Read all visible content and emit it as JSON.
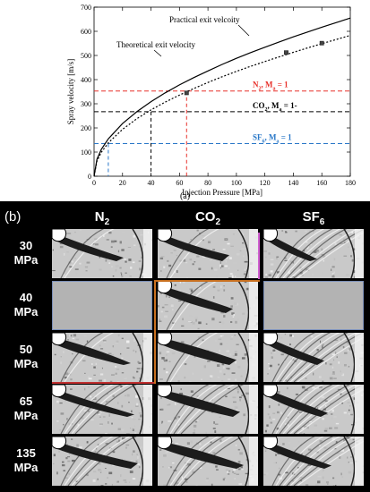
{
  "panel_a_caption": "(a)",
  "chart_data": {
    "type": "line",
    "xlabel": "Injection Pressure [MPa]",
    "ylabel": "Spray velocity [m/s]",
    "xlim": [
      0,
      180
    ],
    "ylim": [
      0,
      700
    ],
    "x_ticks": [
      "0",
      "20",
      "40",
      "60",
      "80",
      "100",
      "120",
      "140",
      "160",
      "180"
    ],
    "y_ticks": [
      "0",
      "100",
      "200",
      "300",
      "400",
      "500",
      "600",
      "700"
    ],
    "grid": false,
    "series": [
      {
        "name": "Theoretical exit velocity",
        "style": "solid",
        "color": "#000000",
        "x": [
          0,
          2,
          5,
          10,
          20,
          30,
          40,
          50,
          60,
          70,
          80,
          90,
          100,
          110,
          120,
          130,
          140,
          150,
          160,
          170,
          180
        ],
        "y": [
          0,
          70,
          110,
          155,
          218,
          267,
          309,
          345,
          378,
          408,
          436,
          463,
          488,
          512,
          534,
          556,
          577,
          597,
          617,
          636,
          655
        ]
      },
      {
        "name": "Practical exit velcoity",
        "style": "dotted",
        "color": "#000000",
        "x": [
          0,
          2,
          5,
          10,
          20,
          30,
          40,
          50,
          60,
          70,
          80,
          90,
          100,
          110,
          120,
          130,
          140,
          150,
          160,
          170,
          180
        ],
        "y": [
          0,
          62,
          98,
          138,
          194,
          238,
          275,
          307,
          336,
          363,
          388,
          412,
          434,
          455,
          475,
          494,
          513,
          531,
          549,
          566,
          583
        ]
      }
    ],
    "measured_points": [
      {
        "x": 65,
        "y": 345
      },
      {
        "x": 135,
        "y": 512
      },
      {
        "x": 160,
        "y": 551
      }
    ],
    "sound_speed_lines": [
      {
        "gas": "N",
        "sub": "2",
        "y": 353,
        "x_intersect": 65,
        "color": "#e8302a"
      },
      {
        "gas": "CO",
        "sub": "2",
        "y": 267,
        "x_intersect": 40,
        "color": "#000000"
      },
      {
        "gas": "SF",
        "sub": "6",
        "y": 135,
        "x_intersect": 10,
        "color": "#2a78c8"
      }
    ],
    "mach_label": "M",
    "mach_sub": "a",
    "mach_value_full": " = 1",
    "mach_value_short": " = 1-",
    "annotations": {
      "practical_label": "Practical exit velcoity",
      "theoretical_label": "Theoretical exit velocity"
    }
  },
  "panel_b": {
    "label": "(b)",
    "columns": [
      {
        "name": "N",
        "sub": "2"
      },
      {
        "name": "CO",
        "sub": "2"
      },
      {
        "name": "SF",
        "sub": "6"
      }
    ],
    "rows": [
      {
        "value": "30",
        "unit": "MPa"
      },
      {
        "value": "40",
        "unit": "MPa"
      },
      {
        "value": "50",
        "unit": "MPa"
      },
      {
        "value": "65",
        "unit": "MPa"
      },
      {
        "value": "135",
        "unit": "MPa"
      }
    ],
    "colors": {
      "highlight_red": "#c03030",
      "highlight_orange": "#c87020",
      "highlight_pink": "#d060d0"
    }
  }
}
